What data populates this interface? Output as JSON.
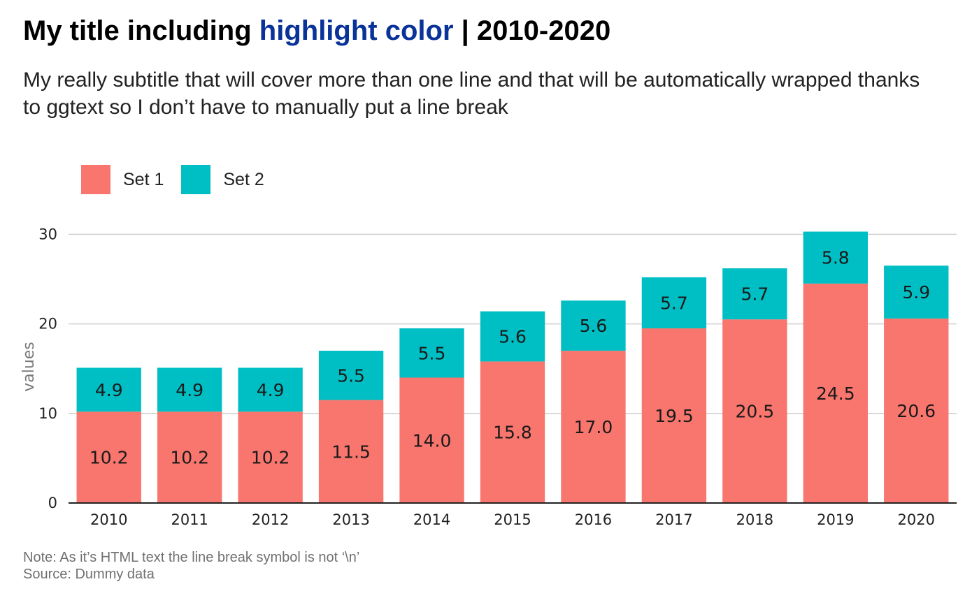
{
  "title": {
    "prefix": "My title including ",
    "highlight": "highlight color",
    "suffix": " | 2010-2020",
    "highlight_color": "#0a3399"
  },
  "subtitle": "My really subtitle that will cover more than one line and that will be automatically wrapped thanks to ggtext so I don’t have to manually put a line break",
  "caption": {
    "note": "Note: As it’s HTML text the line break symbol is not ‘\\n’",
    "source": "Source: Dummy data"
  },
  "chart_data": {
    "type": "bar",
    "stacked": true,
    "categories": [
      "2010",
      "2011",
      "2012",
      "2013",
      "2014",
      "2015",
      "2016",
      "2017",
      "2018",
      "2019",
      "2020"
    ],
    "series": [
      {
        "name": "Set 1",
        "color": "#f8766d",
        "values": [
          10.2,
          10.2,
          10.2,
          11.5,
          14.0,
          15.8,
          17.0,
          19.5,
          20.5,
          24.5,
          20.6
        ],
        "labels": [
          "10.2",
          "10.2",
          "10.2",
          "11.5",
          "14.0",
          "15.8",
          "17.0",
          "19.5",
          "20.5",
          "24.5",
          "20.6"
        ]
      },
      {
        "name": "Set 2",
        "color": "#00bfc4",
        "values": [
          4.9,
          4.9,
          4.9,
          5.5,
          5.5,
          5.6,
          5.6,
          5.7,
          5.7,
          5.8,
          5.9
        ],
        "labels": [
          "4.9",
          "4.9",
          "4.9",
          "5.5",
          "5.5",
          "5.6",
          "5.6",
          "5.7",
          "5.7",
          "5.8",
          "5.9"
        ]
      }
    ],
    "ylabel": "values",
    "xlabel": "",
    "ylim": [
      0,
      30
    ],
    "yticks": [
      0,
      10,
      20,
      30
    ],
    "grid": "horizontal",
    "legend_position": "top-left"
  }
}
